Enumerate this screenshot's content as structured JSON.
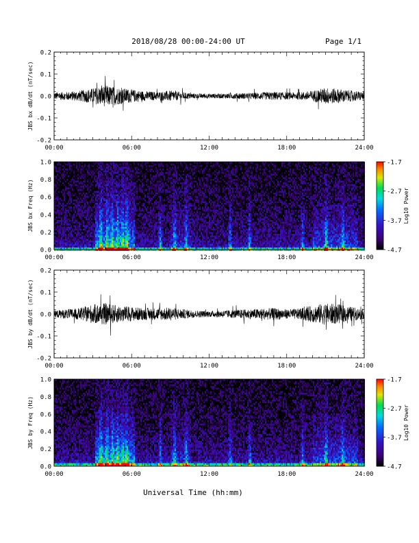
{
  "header": {
    "title": "2018/08/28  00:00-24:00 UT",
    "page": "Page 1/1"
  },
  "xaxis": {
    "label": "Universal Time (hh:mm)",
    "ticks": [
      "00:00",
      "06:00",
      "12:00",
      "18:00",
      "24:00"
    ]
  },
  "colorbar": {
    "label": "Log10 Power",
    "ticks": [
      "-1.7",
      "-2.7",
      "-3.7",
      "-4.7"
    ]
  },
  "chart_data": [
    {
      "type": "line",
      "ylabel": "JBS bx dB/dt (nT/sec)",
      "ylim": [
        -0.2,
        0.2
      ],
      "xlim_hours": [
        0,
        24
      ],
      "yticks": [
        "0.2",
        "0.1",
        "0.0",
        "-0.1",
        "-0.2"
      ],
      "envelope_hours": [
        0,
        1,
        2,
        3,
        4,
        5,
        6,
        7,
        8,
        9,
        10,
        11,
        12,
        13,
        14,
        15,
        16,
        17,
        18,
        19,
        20,
        21,
        22,
        23,
        24
      ],
      "envelope_amplitude": [
        0.03,
        0.035,
        0.045,
        0.065,
        0.09,
        0.07,
        0.055,
        0.04,
        0.035,
        0.045,
        0.03,
        0.02,
        0.02,
        0.02,
        0.025,
        0.025,
        0.03,
        0.035,
        0.03,
        0.03,
        0.045,
        0.07,
        0.06,
        0.045,
        0.035
      ]
    },
    {
      "type": "heatmap",
      "ylabel": "JBS bx Freq (Hz)",
      "ylim": [
        0.0,
        1.0
      ],
      "xlim_hours": [
        0,
        24
      ],
      "yticks": [
        "1.0",
        "0.8",
        "0.6",
        "0.4",
        "0.2",
        "0.0"
      ],
      "zlim": [
        -4.7,
        -1.7
      ],
      "zlabel": "Log10 Power"
    },
    {
      "type": "line",
      "ylabel": "JBS by dB/dt (nT/sec)",
      "ylim": [
        -0.2,
        0.2
      ],
      "xlim_hours": [
        0,
        24
      ],
      "yticks": [
        "0.2",
        "0.1",
        "0.0",
        "-0.1",
        "-0.2"
      ],
      "envelope_hours": [
        0,
        1,
        2,
        3,
        4,
        5,
        6,
        7,
        8,
        9,
        10,
        11,
        12,
        13,
        14,
        15,
        16,
        17,
        18,
        19,
        20,
        21,
        22,
        23,
        24
      ],
      "envelope_amplitude": [
        0.03,
        0.04,
        0.05,
        0.08,
        0.09,
        0.07,
        0.06,
        0.05,
        0.05,
        0.055,
        0.04,
        0.03,
        0.025,
        0.03,
        0.035,
        0.04,
        0.045,
        0.05,
        0.04,
        0.045,
        0.07,
        0.09,
        0.08,
        0.06,
        0.04
      ]
    },
    {
      "type": "heatmap",
      "ylabel": "JBS by Freq (Hz)",
      "ylim": [
        0.0,
        1.0
      ],
      "xlim_hours": [
        0,
        24
      ],
      "yticks": [
        "1.0",
        "0.8",
        "0.6",
        "0.4",
        "0.2",
        "0.0"
      ],
      "zlim": [
        -4.7,
        -1.7
      ],
      "zlabel": "Log10 Power"
    }
  ],
  "colors": {
    "axis": "#000000",
    "trace": "#000000"
  }
}
